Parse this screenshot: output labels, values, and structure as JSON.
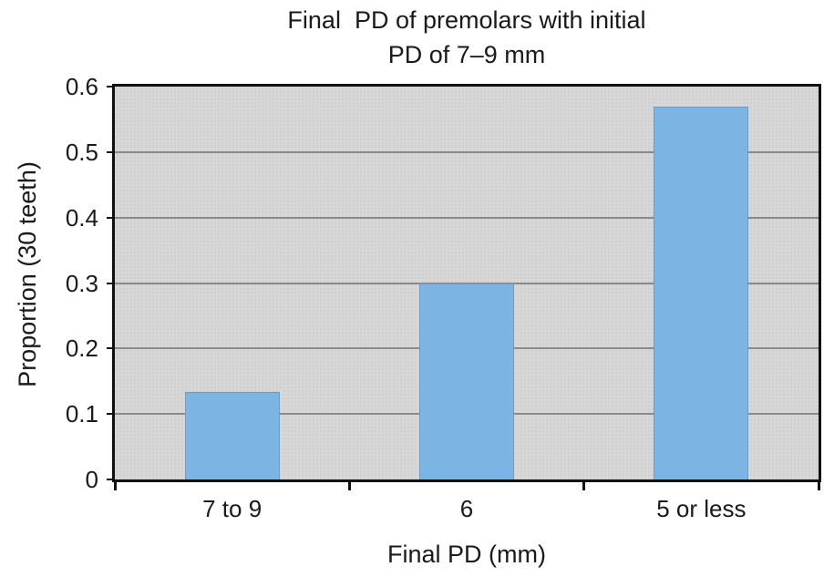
{
  "chart_data": {
    "type": "bar",
    "title_lines": [
      "Final  PD of premolars with initial",
      "PD of 7–9 mm"
    ],
    "categories": [
      "7 to 9",
      "6",
      "5 or less"
    ],
    "values": [
      0.133,
      0.3,
      0.57
    ],
    "xlabel": "Final PD (mm)",
    "ylabel": "Proportion (30 teeth)",
    "ylim": [
      0,
      0.6
    ],
    "yticks": [
      0,
      0.1,
      0.2,
      0.3,
      0.4,
      0.5,
      0.6
    ],
    "ytick_labels": [
      "0",
      "0.1",
      "0.2",
      "0.3",
      "0.4",
      "0.5",
      "0.6"
    ],
    "grid": true,
    "legend": "none",
    "colors": {
      "bar": "#7cb4e4",
      "plot_background": "#d7d7d7",
      "plot_background_dot": "#cccccc",
      "gridline": "#8a8a8a",
      "axis": "#111111",
      "text": "#1a1a1a",
      "figure_background": "#ffffff"
    }
  }
}
